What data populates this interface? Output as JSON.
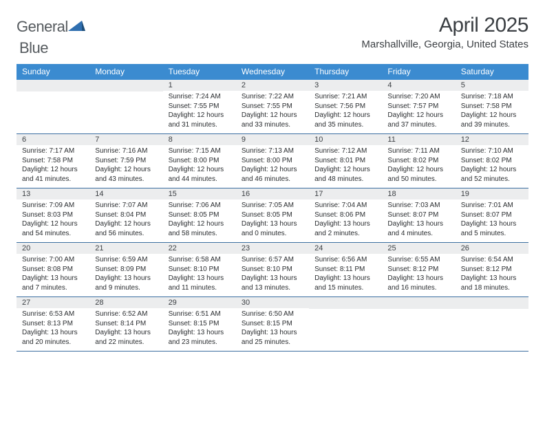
{
  "brand": {
    "word1": "General",
    "word2": "Blue"
  },
  "title": "April 2025",
  "location": "Marshallville, Georgia, United States",
  "colors": {
    "header_bg": "#3b8bd0",
    "header_text": "#ffffff",
    "daybar_bg": "#ecedee",
    "week_border": "#3b6ea0",
    "text": "#2a2d30",
    "logo_gray": "#555a5e",
    "logo_blue": "#2f6fb0"
  },
  "weekdays": [
    "Sunday",
    "Monday",
    "Tuesday",
    "Wednesday",
    "Thursday",
    "Friday",
    "Saturday"
  ],
  "weeks": [
    [
      {
        "day": "",
        "sunrise": "",
        "sunset": "",
        "daylight": ""
      },
      {
        "day": "",
        "sunrise": "",
        "sunset": "",
        "daylight": ""
      },
      {
        "day": "1",
        "sunrise": "Sunrise: 7:24 AM",
        "sunset": "Sunset: 7:55 PM",
        "daylight": "Daylight: 12 hours and 31 minutes."
      },
      {
        "day": "2",
        "sunrise": "Sunrise: 7:22 AM",
        "sunset": "Sunset: 7:55 PM",
        "daylight": "Daylight: 12 hours and 33 minutes."
      },
      {
        "day": "3",
        "sunrise": "Sunrise: 7:21 AM",
        "sunset": "Sunset: 7:56 PM",
        "daylight": "Daylight: 12 hours and 35 minutes."
      },
      {
        "day": "4",
        "sunrise": "Sunrise: 7:20 AM",
        "sunset": "Sunset: 7:57 PM",
        "daylight": "Daylight: 12 hours and 37 minutes."
      },
      {
        "day": "5",
        "sunrise": "Sunrise: 7:18 AM",
        "sunset": "Sunset: 7:58 PM",
        "daylight": "Daylight: 12 hours and 39 minutes."
      }
    ],
    [
      {
        "day": "6",
        "sunrise": "Sunrise: 7:17 AM",
        "sunset": "Sunset: 7:58 PM",
        "daylight": "Daylight: 12 hours and 41 minutes."
      },
      {
        "day": "7",
        "sunrise": "Sunrise: 7:16 AM",
        "sunset": "Sunset: 7:59 PM",
        "daylight": "Daylight: 12 hours and 43 minutes."
      },
      {
        "day": "8",
        "sunrise": "Sunrise: 7:15 AM",
        "sunset": "Sunset: 8:00 PM",
        "daylight": "Daylight: 12 hours and 44 minutes."
      },
      {
        "day": "9",
        "sunrise": "Sunrise: 7:13 AM",
        "sunset": "Sunset: 8:00 PM",
        "daylight": "Daylight: 12 hours and 46 minutes."
      },
      {
        "day": "10",
        "sunrise": "Sunrise: 7:12 AM",
        "sunset": "Sunset: 8:01 PM",
        "daylight": "Daylight: 12 hours and 48 minutes."
      },
      {
        "day": "11",
        "sunrise": "Sunrise: 7:11 AM",
        "sunset": "Sunset: 8:02 PM",
        "daylight": "Daylight: 12 hours and 50 minutes."
      },
      {
        "day": "12",
        "sunrise": "Sunrise: 7:10 AM",
        "sunset": "Sunset: 8:02 PM",
        "daylight": "Daylight: 12 hours and 52 minutes."
      }
    ],
    [
      {
        "day": "13",
        "sunrise": "Sunrise: 7:09 AM",
        "sunset": "Sunset: 8:03 PM",
        "daylight": "Daylight: 12 hours and 54 minutes."
      },
      {
        "day": "14",
        "sunrise": "Sunrise: 7:07 AM",
        "sunset": "Sunset: 8:04 PM",
        "daylight": "Daylight: 12 hours and 56 minutes."
      },
      {
        "day": "15",
        "sunrise": "Sunrise: 7:06 AM",
        "sunset": "Sunset: 8:05 PM",
        "daylight": "Daylight: 12 hours and 58 minutes."
      },
      {
        "day": "16",
        "sunrise": "Sunrise: 7:05 AM",
        "sunset": "Sunset: 8:05 PM",
        "daylight": "Daylight: 13 hours and 0 minutes."
      },
      {
        "day": "17",
        "sunrise": "Sunrise: 7:04 AM",
        "sunset": "Sunset: 8:06 PM",
        "daylight": "Daylight: 13 hours and 2 minutes."
      },
      {
        "day": "18",
        "sunrise": "Sunrise: 7:03 AM",
        "sunset": "Sunset: 8:07 PM",
        "daylight": "Daylight: 13 hours and 4 minutes."
      },
      {
        "day": "19",
        "sunrise": "Sunrise: 7:01 AM",
        "sunset": "Sunset: 8:07 PM",
        "daylight": "Daylight: 13 hours and 5 minutes."
      }
    ],
    [
      {
        "day": "20",
        "sunrise": "Sunrise: 7:00 AM",
        "sunset": "Sunset: 8:08 PM",
        "daylight": "Daylight: 13 hours and 7 minutes."
      },
      {
        "day": "21",
        "sunrise": "Sunrise: 6:59 AM",
        "sunset": "Sunset: 8:09 PM",
        "daylight": "Daylight: 13 hours and 9 minutes."
      },
      {
        "day": "22",
        "sunrise": "Sunrise: 6:58 AM",
        "sunset": "Sunset: 8:10 PM",
        "daylight": "Daylight: 13 hours and 11 minutes."
      },
      {
        "day": "23",
        "sunrise": "Sunrise: 6:57 AM",
        "sunset": "Sunset: 8:10 PM",
        "daylight": "Daylight: 13 hours and 13 minutes."
      },
      {
        "day": "24",
        "sunrise": "Sunrise: 6:56 AM",
        "sunset": "Sunset: 8:11 PM",
        "daylight": "Daylight: 13 hours and 15 minutes."
      },
      {
        "day": "25",
        "sunrise": "Sunrise: 6:55 AM",
        "sunset": "Sunset: 8:12 PM",
        "daylight": "Daylight: 13 hours and 16 minutes."
      },
      {
        "day": "26",
        "sunrise": "Sunrise: 6:54 AM",
        "sunset": "Sunset: 8:12 PM",
        "daylight": "Daylight: 13 hours and 18 minutes."
      }
    ],
    [
      {
        "day": "27",
        "sunrise": "Sunrise: 6:53 AM",
        "sunset": "Sunset: 8:13 PM",
        "daylight": "Daylight: 13 hours and 20 minutes."
      },
      {
        "day": "28",
        "sunrise": "Sunrise: 6:52 AM",
        "sunset": "Sunset: 8:14 PM",
        "daylight": "Daylight: 13 hours and 22 minutes."
      },
      {
        "day": "29",
        "sunrise": "Sunrise: 6:51 AM",
        "sunset": "Sunset: 8:15 PM",
        "daylight": "Daylight: 13 hours and 23 minutes."
      },
      {
        "day": "30",
        "sunrise": "Sunrise: 6:50 AM",
        "sunset": "Sunset: 8:15 PM",
        "daylight": "Daylight: 13 hours and 25 minutes."
      },
      {
        "day": "",
        "sunrise": "",
        "sunset": "",
        "daylight": ""
      },
      {
        "day": "",
        "sunrise": "",
        "sunset": "",
        "daylight": ""
      },
      {
        "day": "",
        "sunrise": "",
        "sunset": "",
        "daylight": ""
      }
    ]
  ]
}
